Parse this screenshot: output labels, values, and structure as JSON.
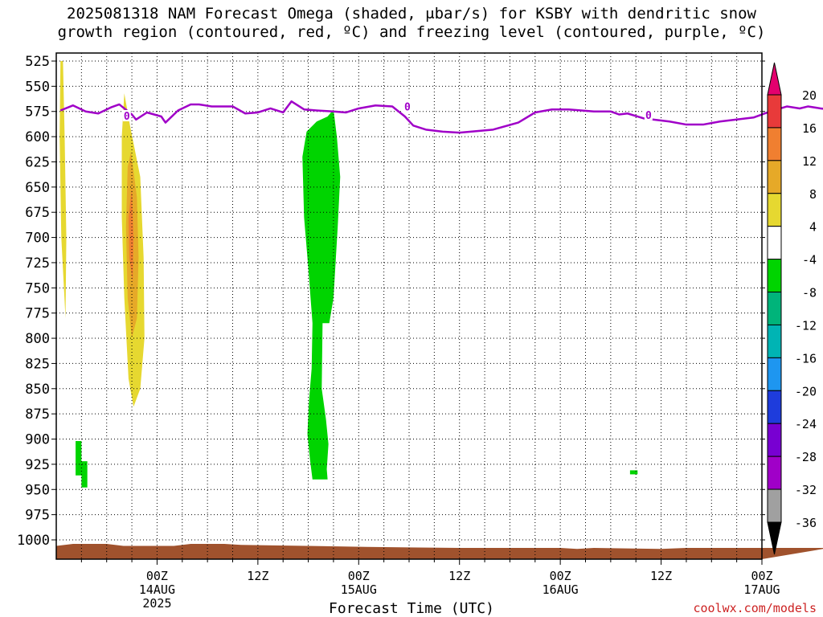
{
  "title": {
    "line1": "2025081318 NAM Forecast Omega (shaded, μbar/s) for KSBY with dendritic snow",
    "line2": "growth region (contoured, red, ºC) and freezing level (contoured, purple, ºC)"
  },
  "credit": "coolwx.com/models",
  "chart_data": {
    "type": "heatmap",
    "xlabel": "Forecast Time (UTC)",
    "ylabel": "",
    "y_axis": {
      "ticks": [
        "525",
        "550",
        "575",
        "600",
        "625",
        "650",
        "675",
        "700",
        "725",
        "750",
        "775",
        "800",
        "825",
        "850",
        "875",
        "900",
        "925",
        "950",
        "975",
        "1000"
      ],
      "range": [
        525,
        1000
      ],
      "inverted": true
    },
    "x_axis": {
      "range_hours": [
        -12,
        72
      ],
      "ticks": [
        {
          "hour": 0,
          "label": "00Z",
          "sub1": "14AUG",
          "sub2": "2025"
        },
        {
          "hour": 12,
          "label": "12Z",
          "sub1": "",
          "sub2": ""
        },
        {
          "hour": 24,
          "label": "00Z",
          "sub1": "15AUG",
          "sub2": ""
        },
        {
          "hour": 36,
          "label": "12Z",
          "sub1": "",
          "sub2": ""
        },
        {
          "hour": 48,
          "label": "00Z",
          "sub1": "16AUG",
          "sub2": ""
        },
        {
          "hour": 60,
          "label": "12Z",
          "sub1": "",
          "sub2": ""
        },
        {
          "hour": 72,
          "label": "00Z",
          "sub1": "17AUG",
          "sub2": ""
        }
      ]
    },
    "grid": true,
    "colorbar": {
      "labels": [
        "20",
        "16",
        "12",
        "8",
        "4",
        "-4",
        "-8",
        "-12",
        "-16",
        "-20",
        "-24",
        "-28",
        "-32",
        "-36"
      ],
      "colors": [
        "#e3006e",
        "#e83a3a",
        "#f07f30",
        "#e6a928",
        "#e6d830",
        "#ffffff",
        "#00d400",
        "#00b47a",
        "#00b4b4",
        "#1e96f0",
        "#1e3cdc",
        "#7800d2",
        "#a000c8",
        "#a0a0a0",
        "#000000"
      ]
    },
    "freezing_level": {
      "label": "0",
      "color": "#a000c8",
      "points": [
        [
          -11.5,
          574
        ],
        [
          -10,
          569
        ],
        [
          -8.5,
          575
        ],
        [
          -7,
          577
        ],
        [
          -5.5,
          571
        ],
        [
          -4.5,
          568
        ],
        [
          -3,
          578
        ],
        [
          -2.5,
          583
        ],
        [
          -1.2,
          576
        ],
        [
          0.5,
          580
        ],
        [
          1,
          586
        ],
        [
          2.5,
          574
        ],
        [
          4,
          568
        ],
        [
          5,
          568
        ],
        [
          6.5,
          570
        ],
        [
          9,
          570
        ],
        [
          10.5,
          577
        ],
        [
          12,
          576
        ],
        [
          13.5,
          572
        ],
        [
          15,
          576
        ],
        [
          16,
          565
        ],
        [
          17.5,
          573
        ],
        [
          19,
          574
        ],
        [
          21,
          575
        ],
        [
          22.5,
          576
        ],
        [
          24,
          572
        ],
        [
          26,
          569
        ],
        [
          28,
          570
        ],
        [
          29.5,
          580
        ],
        [
          30.5,
          589
        ],
        [
          32,
          593
        ],
        [
          34,
          595
        ],
        [
          36,
          596
        ],
        [
          40,
          593
        ],
        [
          43,
          586
        ],
        [
          45,
          576
        ],
        [
          47,
          573
        ],
        [
          49,
          573
        ],
        [
          52,
          575
        ],
        [
          54,
          575
        ],
        [
          55,
          578
        ],
        [
          56,
          577
        ],
        [
          58,
          582
        ],
        [
          61,
          585
        ],
        [
          63,
          588
        ],
        [
          65,
          588
        ],
        [
          67,
          585
        ],
        [
          69,
          583
        ],
        [
          71,
          581
        ],
        [
          73,
          575
        ],
        [
          75,
          570
        ],
        [
          76.5,
          572
        ],
        [
          77.5,
          570
        ],
        [
          79,
          572
        ],
        [
          80,
          573
        ]
      ]
    },
    "shaded_regions": [
      {
        "value_bin": "4",
        "color": "#e6d830",
        "points": [
          [
            -11.2,
            525
          ],
          [
            -11.0,
            600
          ],
          [
            -10.8,
            700
          ],
          [
            -10.9,
            780
          ],
          [
            -11.4,
            700
          ],
          [
            -11.6,
            600
          ],
          [
            -11.5,
            525
          ]
        ]
      },
      {
        "value_bin": "4",
        "color": "#e6d830",
        "points": [
          [
            -3.9,
            557
          ],
          [
            -3.2,
            590
          ],
          [
            -2.0,
            640
          ],
          [
            -1.6,
            720
          ],
          [
            -1.5,
            800
          ],
          [
            -2.0,
            850
          ],
          [
            -2.8,
            868
          ],
          [
            -3.4,
            840
          ],
          [
            -3.9,
            760
          ],
          [
            -4.2,
            680
          ],
          [
            -4.2,
            600
          ]
        ]
      },
      {
        "value_bin": "8",
        "color": "#e6a928",
        "points": [
          [
            -3.1,
            615
          ],
          [
            -2.4,
            660
          ],
          [
            -2.2,
            720
          ],
          [
            -2.4,
            780
          ],
          [
            -3.0,
            800
          ],
          [
            -3.5,
            760
          ],
          [
            -3.7,
            690
          ],
          [
            -3.5,
            630
          ]
        ]
      },
      {
        "value_bin": "12",
        "color": "#f07f30",
        "points": [
          [
            -3.0,
            650
          ],
          [
            -2.8,
            700
          ],
          [
            -2.9,
            745
          ],
          [
            -3.3,
            720
          ],
          [
            -3.4,
            680
          ]
        ]
      },
      {
        "value_bin": "-8",
        "color": "#00d400",
        "points": [
          [
            21.0,
            573
          ],
          [
            21.4,
            600
          ],
          [
            21.8,
            640
          ],
          [
            21.5,
            690
          ],
          [
            21.0,
            760
          ],
          [
            20.5,
            785
          ],
          [
            19.7,
            785
          ],
          [
            19.6,
            850
          ],
          [
            20.1,
            880
          ],
          [
            20.4,
            905
          ],
          [
            20.2,
            930
          ],
          [
            20.3,
            940
          ],
          [
            18.5,
            940
          ],
          [
            18.2,
            920
          ],
          [
            17.9,
            895
          ],
          [
            18.1,
            860
          ],
          [
            18.4,
            830
          ],
          [
            18.5,
            785
          ],
          [
            18.0,
            730
          ],
          [
            17.5,
            680
          ],
          [
            17.3,
            620
          ],
          [
            17.8,
            595
          ],
          [
            19.0,
            585
          ],
          [
            20.3,
            580
          ]
        ]
      },
      {
        "value_bin": "-8",
        "color": "#00d400",
        "points": [
          [
            -9.7,
            902
          ],
          [
            -9.0,
            902
          ],
          [
            -9.0,
            922
          ],
          [
            -8.3,
            922
          ],
          [
            -8.3,
            948
          ],
          [
            -9.0,
            948
          ],
          [
            -9.0,
            936
          ],
          [
            -9.7,
            936
          ]
        ]
      },
      {
        "value_bin": "-8",
        "color": "#00d400",
        "points": [
          [
            56.3,
            931
          ],
          [
            57.2,
            931
          ],
          [
            57.2,
            935
          ],
          [
            56.3,
            935
          ]
        ]
      }
    ],
    "terrain": {
      "color": "#a0522d",
      "points": [
        [
          -12,
          1006
        ],
        [
          -10,
          1004
        ],
        [
          -6,
          1004
        ],
        [
          -4,
          1006
        ],
        [
          2,
          1006
        ],
        [
          4,
          1004
        ],
        [
          8,
          1004
        ],
        [
          10,
          1005
        ],
        [
          18,
          1006
        ],
        [
          25,
          1007
        ],
        [
          36,
          1008
        ],
        [
          48,
          1008
        ],
        [
          50,
          1009
        ],
        [
          52,
          1008
        ],
        [
          60,
          1009
        ],
        [
          63,
          1008
        ],
        [
          72,
          1008
        ],
        [
          80,
          1008
        ]
      ]
    }
  }
}
